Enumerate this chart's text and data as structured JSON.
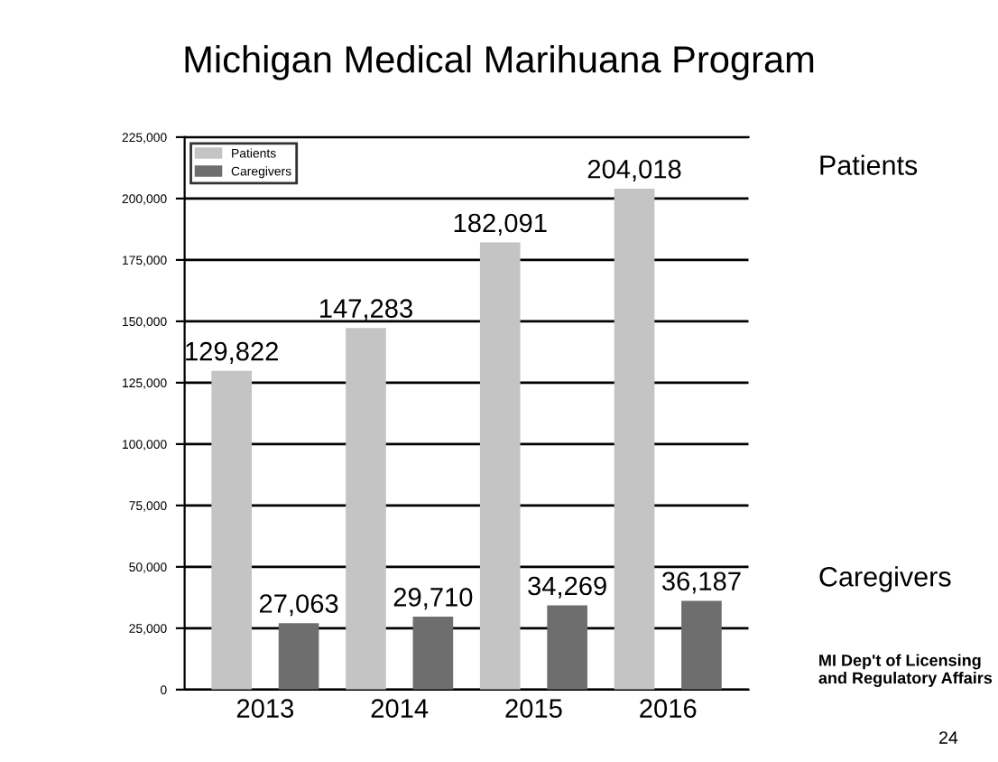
{
  "chart_data": {
    "type": "bar",
    "title": "Michigan Medical Marihuana Program",
    "categories": [
      "2013",
      "2014",
      "2015",
      "2016"
    ],
    "series": [
      {
        "name": "Patients",
        "color": "#c4c4c4",
        "values": [
          129822,
          147283,
          182091,
          204018
        ],
        "value_labels": [
          "129,822",
          "147,283",
          "182,091",
          "204,018"
        ]
      },
      {
        "name": "Caregivers",
        "color": "#6e6e6e",
        "values": [
          27063,
          29710,
          34269,
          36187
        ],
        "value_labels": [
          "27,063",
          "29,710",
          "34,269",
          "36,187"
        ]
      }
    ],
    "ylim": [
      0,
      225000
    ],
    "yticks": [
      0,
      {
        "value": 25000,
        "label": "25,000"
      },
      {
        "value": 50000,
        "label": "50,000"
      },
      {
        "value": 75000,
        "label": "75,000"
      },
      {
        "value": 100000,
        "label": "100,000"
      },
      {
        "value": 125000,
        "label": "125,000"
      },
      {
        "value": 150000,
        "label": "150,000"
      },
      {
        "value": 175000,
        "label": "175,000"
      },
      {
        "value": 200000,
        "label": "200,000"
      },
      {
        "value": 225000,
        "label": "225,000"
      }
    ],
    "grid": "y",
    "legend": "top left",
    "annotations": [
      "Patients",
      "Caregivers",
      "MI Dep't of Licensing and Regulatory Affairs",
      "24"
    ]
  }
}
